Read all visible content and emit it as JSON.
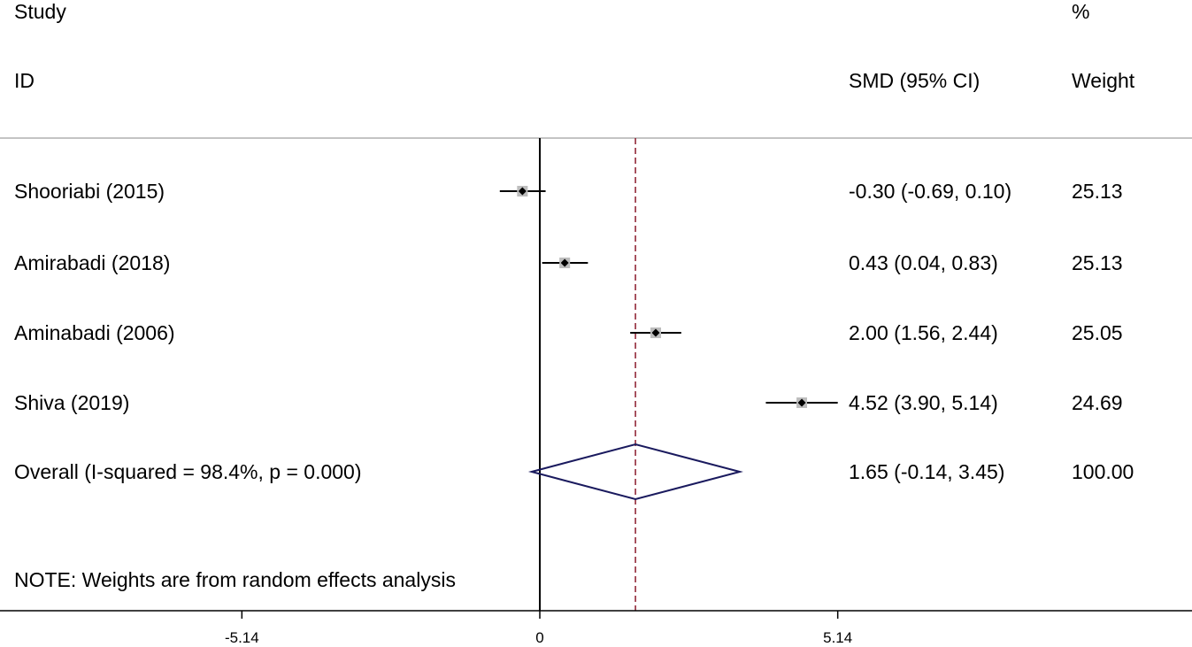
{
  "chart_data": {
    "type": "forest",
    "headers": {
      "study_line1": "Study",
      "study_line2": "ID",
      "effect": "SMD (95% CI)",
      "weight_line1": "%",
      "weight_line2": "Weight"
    },
    "studies": [
      {
        "label": "Shooriabi  (2015)",
        "smd": -0.3,
        "lower": -0.69,
        "upper": 0.1,
        "ci_text": "-0.30 (-0.69, 0.10)",
        "weight": "25.13",
        "weight_value": 25.13
      },
      {
        "label": "Amirabadi  (2018)",
        "smd": 0.43,
        "lower": 0.04,
        "upper": 0.83,
        "ci_text": "0.43 (0.04, 0.83)",
        "weight": "25.13",
        "weight_value": 25.13
      },
      {
        "label": "Aminabadi (2006)",
        "smd": 2.0,
        "lower": 1.56,
        "upper": 2.44,
        "ci_text": "2.00 (1.56, 2.44)",
        "weight": "25.05",
        "weight_value": 25.05
      },
      {
        "label": "Shiva (2019)",
        "smd": 4.52,
        "lower": 3.9,
        "upper": 5.14,
        "ci_text": "4.52 (3.90, 5.14)",
        "weight": "24.69",
        "weight_value": 24.69
      }
    ],
    "overall": {
      "label": "Overall  (I-squared = 98.4%, p = 0.000)",
      "smd": 1.65,
      "lower": -0.14,
      "upper": 3.45,
      "ci_text": "1.65 (-0.14, 3.45)",
      "weight": "100.00"
    },
    "note": "NOTE: Weights are from random effects analysis",
    "x_ticks": [
      {
        "value": -5.14,
        "label": "-5.14"
      },
      {
        "value": 0,
        "label": "0"
      },
      {
        "value": 5.14,
        "label": "5.14"
      }
    ],
    "colors": {
      "ci_line": "#000000",
      "weight_box": "#bdbdbd",
      "overall_diamond": "#1a1a5e",
      "overall_line": "#8b1a2b",
      "rules": "#b0b0b0"
    }
  }
}
